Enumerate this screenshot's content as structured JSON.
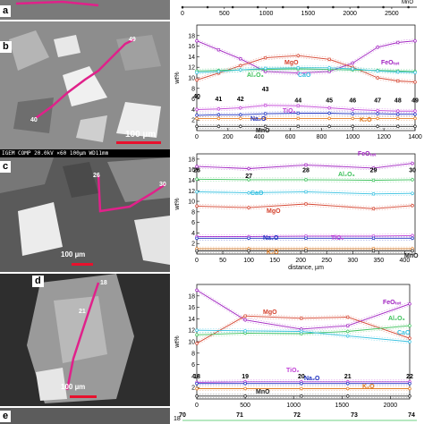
{
  "panels": [
    {
      "label": "a"
    },
    {
      "label": "b",
      "scale_bar": "100 µm",
      "sem_info": "IGEM COMP   20.0kV   ×60   100µm  WD11mm",
      "point_labels": [
        "40",
        "41",
        "42",
        "43",
        "44",
        "45",
        "46",
        "47",
        "48",
        "49"
      ]
    },
    {
      "label": "c",
      "scale_bar": "100 µm",
      "point_labels": [
        "26",
        "27",
        "28",
        "29",
        "30"
      ]
    },
    {
      "label": "d",
      "scale_bar": "100 µm",
      "point_labels": [
        "18",
        "19",
        "20",
        "21",
        "22"
      ]
    },
    {
      "label": "e"
    }
  ],
  "chart_data": [
    {
      "type": "line",
      "panel": "a",
      "xlabel": "",
      "ylabel": "",
      "x_ticks": [
        0,
        500,
        1000,
        1500,
        2000,
        2500
      ],
      "xlim": [
        0,
        2800
      ],
      "series": [
        {
          "name": "MnO",
          "x": [
            0,
            300,
            600,
            900,
            1200,
            1500,
            1800,
            2100,
            2400,
            2700
          ],
          "y": [
            1,
            1,
            1,
            1,
            1,
            1,
            1,
            1,
            1,
            1
          ]
        }
      ]
    },
    {
      "type": "line",
      "panel": "b",
      "ylabel": "wt%",
      "xlabel": "",
      "xlim": [
        0,
        1400
      ],
      "ylim": [
        0,
        20
      ],
      "x_ticks": [
        0,
        200,
        400,
        600,
        800,
        1000,
        1200,
        1400
      ],
      "y_ticks": [
        2,
        4,
        6,
        8,
        10,
        12,
        14,
        16,
        18
      ],
      "point_labels": [
        {
          "text": "40",
          "x": 0,
          "y": 6.1
        },
        {
          "text": "41",
          "x": 140,
          "y": 5.6
        },
        {
          "text": "42",
          "x": 280,
          "y": 5.6
        },
        {
          "text": "43",
          "x": 440,
          "y": 7.5
        },
        {
          "text": "44",
          "x": 650,
          "y": 5.3
        },
        {
          "text": "45",
          "x": 850,
          "y": 5.3
        },
        {
          "text": "46",
          "x": 1000,
          "y": 5.3
        },
        {
          "text": "47",
          "x": 1160,
          "y": 5.3
        },
        {
          "text": "48",
          "x": 1290,
          "y": 5.3
        },
        {
          "text": "49",
          "x": 1400,
          "y": 5.3
        }
      ],
      "series": [
        {
          "name": "FeOtot",
          "color": "#a020c0",
          "x": [
            0,
            140,
            280,
            440,
            650,
            850,
            1000,
            1160,
            1290,
            1400
          ],
          "y": [
            17.0,
            15.3,
            13.6,
            11.2,
            10.9,
            11.2,
            12.8,
            15.8,
            16.7,
            17.0
          ]
        },
        {
          "name": "MgO",
          "color": "#d43f2a",
          "x": [
            0,
            140,
            280,
            440,
            650,
            850,
            1000,
            1160,
            1290,
            1400
          ],
          "y": [
            9.6,
            10.9,
            12.3,
            13.8,
            14.2,
            13.5,
            12.0,
            10.0,
            9.4,
            9.2
          ]
        },
        {
          "name": "Al2O3",
          "color": "#3cc15a",
          "x": [
            0,
            140,
            280,
            440,
            650,
            850,
            1000,
            1160,
            1290,
            1400
          ],
          "y": [
            11.3,
            11.4,
            11.5,
            11.6,
            11.7,
            11.6,
            11.5,
            11.4,
            11.3,
            11.2
          ]
        },
        {
          "name": "CaO",
          "color": "#34c0e0",
          "x": [
            0,
            140,
            280,
            440,
            650,
            850,
            1000,
            1160,
            1290,
            1400
          ],
          "y": [
            11.0,
            11.2,
            11.5,
            11.8,
            11.9,
            11.9,
            11.7,
            11.3,
            11.1,
            11.0
          ]
        },
        {
          "name": "TiO2",
          "color": "#c13fd6",
          "x": [
            0,
            140,
            280,
            440,
            650,
            850,
            1000,
            1160,
            1290,
            1400
          ],
          "y": [
            4.0,
            4.1,
            4.3,
            4.8,
            4.7,
            4.3,
            4.0,
            3.8,
            3.7,
            3.7
          ]
        },
        {
          "name": "Na2O",
          "color": "#1a2fbf",
          "x": [
            0,
            140,
            280,
            440,
            650,
            850,
            1000,
            1160,
            1290,
            1400
          ],
          "y": [
            2.9,
            3.0,
            3.0,
            3.2,
            3.3,
            3.3,
            3.2,
            3.2,
            3.1,
            3.1
          ]
        },
        {
          "name": "K2O",
          "color": "#e07a20",
          "x": [
            0,
            140,
            280,
            440,
            650,
            850,
            1000,
            1160,
            1290,
            1400
          ],
          "y": [
            2.3,
            2.3,
            2.3,
            2.3,
            2.3,
            2.3,
            2.3,
            2.3,
            2.3,
            2.3
          ]
        },
        {
          "name": "MnO",
          "color": "#222222",
          "x": [
            0,
            140,
            280,
            440,
            650,
            850,
            1000,
            1160,
            1290,
            1400
          ],
          "y": [
            0.8,
            0.8,
            0.8,
            0.8,
            0.8,
            0.8,
            0.8,
            0.8,
            0.8,
            0.8
          ]
        }
      ]
    },
    {
      "type": "line",
      "panel": "c",
      "ylabel": "wt%",
      "xlabel": "distance, µm",
      "xlim": [
        0,
        420
      ],
      "ylim": [
        0,
        19
      ],
      "x_ticks": [
        0,
        50,
        100,
        150,
        200,
        250,
        300,
        350,
        400
      ],
      "y_ticks": [
        2,
        4,
        6,
        8,
        10,
        12,
        14,
        16,
        18
      ],
      "point_labels": [
        {
          "text": "26",
          "x": 0,
          "y": 15.5
        },
        {
          "text": "27",
          "x": 100,
          "y": 14.4
        },
        {
          "text": "28",
          "x": 210,
          "y": 15.5
        },
        {
          "text": "29",
          "x": 340,
          "y": 15.5
        },
        {
          "text": "30",
          "x": 415,
          "y": 15.5
        }
      ],
      "series": [
        {
          "name": "FeOtot",
          "color": "#a020c0",
          "x": [
            0,
            100,
            210,
            340,
            415
          ],
          "y": [
            16.6,
            16.2,
            16.9,
            16.3,
            17.2
          ]
        },
        {
          "name": "Al2O3",
          "color": "#3cc15a",
          "x": [
            0,
            100,
            210,
            340,
            415
          ],
          "y": [
            14.2,
            14.1,
            14.1,
            14.0,
            14.1
          ]
        },
        {
          "name": "CaO",
          "color": "#34c0e0",
          "x": [
            0,
            100,
            210,
            340,
            415
          ],
          "y": [
            11.8,
            11.6,
            11.8,
            11.4,
            11.5
          ]
        },
        {
          "name": "MgO",
          "color": "#d43f2a",
          "x": [
            0,
            100,
            210,
            340,
            415
          ],
          "y": [
            9.1,
            8.8,
            9.5,
            8.6,
            9.2
          ]
        },
        {
          "name": "TiO2",
          "color": "#c13fd6",
          "x": [
            0,
            100,
            210,
            340,
            415
          ],
          "y": [
            3.3,
            3.3,
            3.4,
            3.4,
            3.5
          ]
        },
        {
          "name": "Na2O",
          "color": "#1a2fbf",
          "x": [
            0,
            100,
            210,
            340,
            415
          ],
          "y": [
            3.0,
            3.0,
            3.0,
            3.0,
            3.0
          ]
        },
        {
          "name": "K2O",
          "color": "#e07a20",
          "x": [
            0,
            100,
            210,
            340,
            415
          ],
          "y": [
            1.0,
            1.0,
            1.0,
            1.0,
            1.0
          ]
        },
        {
          "name": "MnO",
          "color": "#222222",
          "x": [
            0,
            100,
            210,
            340,
            415
          ],
          "y": [
            0.6,
            0.6,
            0.6,
            0.6,
            0.6
          ]
        }
      ]
    },
    {
      "type": "line",
      "panel": "d",
      "ylabel": "wt%",
      "xlabel": "",
      "xlim": [
        0,
        2200
      ],
      "ylim": [
        0,
        20
      ],
      "x_ticks": [
        0,
        500,
        1000,
        1500,
        2000
      ],
      "y_ticks": [
        2,
        4,
        6,
        8,
        10,
        12,
        14,
        16,
        18
      ],
      "point_labels": [
        {
          "text": "18",
          "x": 0,
          "y": 3.6
        },
        {
          "text": "19",
          "x": 500,
          "y": 3.6
        },
        {
          "text": "20",
          "x": 1080,
          "y": 3.6
        },
        {
          "text": "21",
          "x": 1560,
          "y": 3.6
        },
        {
          "text": "22",
          "x": 2200,
          "y": 3.6
        }
      ],
      "series": [
        {
          "name": "FeOtot",
          "color": "#a020c0",
          "x": [
            0,
            500,
            1080,
            1560,
            2200
          ],
          "y": [
            19.0,
            13.8,
            12.2,
            12.8,
            16.6
          ]
        },
        {
          "name": "MgO",
          "color": "#d43f2a",
          "x": [
            0,
            500,
            1080,
            1560,
            2200
          ],
          "y": [
            9.7,
            14.5,
            14.1,
            14.3,
            10.6
          ]
        },
        {
          "name": "Al2O3",
          "color": "#3cc15a",
          "x": [
            0,
            500,
            1080,
            1560,
            2200
          ],
          "y": [
            11.2,
            11.5,
            11.4,
            11.8,
            12.8
          ]
        },
        {
          "name": "CaO",
          "color": "#34c0e0",
          "x": [
            0,
            500,
            1080,
            1560,
            2200
          ],
          "y": [
            12.0,
            11.9,
            11.8,
            11.0,
            10.0
          ]
        },
        {
          "name": "TiO2",
          "color": "#c13fd6",
          "x": [
            0,
            500,
            1080,
            1560,
            2200
          ],
          "y": [
            2.9,
            3.0,
            3.0,
            3.0,
            3.0
          ]
        },
        {
          "name": "Na2O",
          "color": "#1a2fbf",
          "x": [
            0,
            500,
            1080,
            1560,
            2200
          ],
          "y": [
            2.7,
            2.7,
            2.7,
            2.7,
            2.7
          ]
        },
        {
          "name": "K2O",
          "color": "#e07a20",
          "x": [
            0,
            500,
            1080,
            1560,
            2200
          ],
          "y": [
            1.8,
            1.8,
            1.8,
            1.8,
            1.8
          ]
        },
        {
          "name": "MnO",
          "color": "#222222",
          "x": [
            0,
            500,
            1080,
            1560,
            2200
          ],
          "y": [
            0.5,
            0.5,
            0.5,
            0.5,
            0.5
          ]
        }
      ]
    },
    {
      "type": "line",
      "panel": "e",
      "ylabel": "",
      "xlabel": "",
      "point_labels": [
        {
          "text": "70"
        },
        {
          "text": "71"
        },
        {
          "text": "72"
        },
        {
          "text": "73"
        },
        {
          "text": "74"
        }
      ],
      "series": []
    }
  ]
}
